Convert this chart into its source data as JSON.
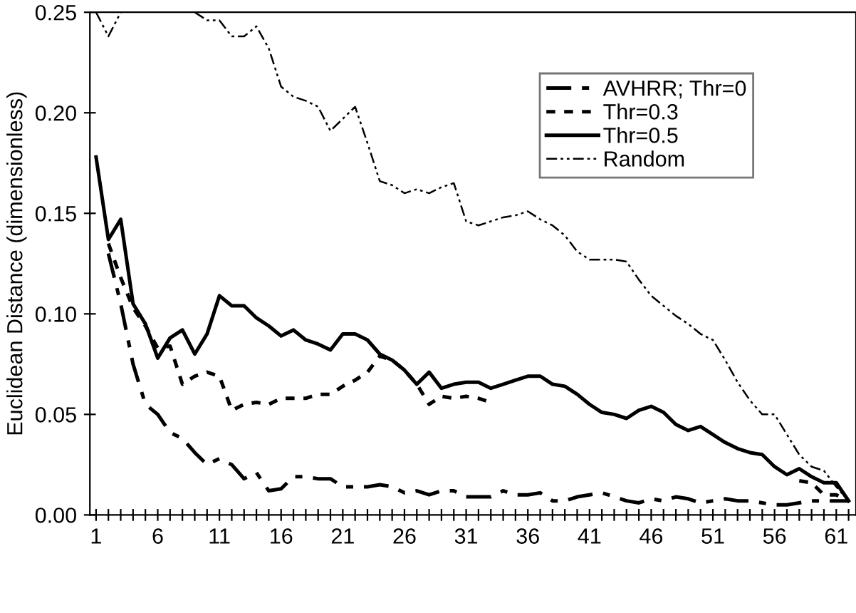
{
  "chart_data": {
    "type": "line",
    "ylabel": "Euclidean Distance (dimensionless)",
    "x": [
      1,
      2,
      3,
      4,
      5,
      6,
      7,
      8,
      9,
      10,
      11,
      12,
      13,
      14,
      15,
      16,
      17,
      18,
      19,
      20,
      21,
      22,
      23,
      24,
      25,
      26,
      27,
      28,
      29,
      30,
      31,
      32,
      33,
      34,
      35,
      36,
      37,
      38,
      39,
      40,
      41,
      42,
      43,
      44,
      45,
      46,
      47,
      48,
      49,
      50,
      51,
      52,
      53,
      54,
      55,
      56,
      57,
      58,
      59,
      60,
      61,
      62
    ],
    "series": [
      {
        "name": "AVHRR; Thr=0",
        "color": "#000000",
        "line_style": "dashed",
        "values": [
          null,
          0.13,
          0.105,
          0.075,
          0.055,
          0.05,
          0.041,
          0.038,
          0.031,
          0.025,
          0.028,
          0.025,
          0.018,
          0.021,
          0.012,
          0.013,
          0.019,
          0.019,
          0.018,
          0.018,
          0.014,
          0.014,
          0.014,
          0.015,
          0.014,
          0.011,
          0.012,
          0.01,
          0.012,
          0.012,
          0.009,
          0.009,
          0.009,
          0.012,
          0.01,
          0.01,
          0.011,
          0.007,
          0.007,
          0.009,
          0.01,
          0.011,
          0.009,
          0.007,
          0.006,
          0.008,
          0.007,
          0.009,
          0.008,
          0.006,
          0.007,
          0.008,
          0.007,
          0.007,
          0.006,
          0.005,
          0.005,
          0.006,
          0.007,
          0.007,
          0.007,
          0.007
        ]
      },
      {
        "name": "Thr=0.3",
        "color": "#000000",
        "line_style": "dotted",
        "values": [
          null,
          0.135,
          0.118,
          0.103,
          0.094,
          0.083,
          0.084,
          0.065,
          0.069,
          0.071,
          0.069,
          0.052,
          0.055,
          0.056,
          0.055,
          0.058,
          0.058,
          0.058,
          0.06,
          0.06,
          0.064,
          0.067,
          0.071,
          0.079,
          0.077,
          0.072,
          0.065,
          0.055,
          0.059,
          0.058,
          0.059,
          0.058,
          0.056,
          null,
          null,
          null,
          null,
          null,
          null,
          null,
          null,
          null,
          null,
          null,
          null,
          null,
          null,
          null,
          null,
          null,
          null,
          null,
          null,
          null,
          null,
          null,
          null,
          0.017,
          0.016,
          0.01,
          0.01,
          0.007
        ]
      },
      {
        "name": "Thr=0.5",
        "color": "#000000",
        "line_style": "solid",
        "values": [
          0.178,
          0.137,
          0.147,
          0.105,
          0.095,
          0.078,
          0.088,
          0.092,
          0.08,
          0.09,
          0.109,
          0.104,
          0.104,
          0.098,
          0.094,
          0.089,
          0.092,
          0.087,
          0.085,
          0.082,
          0.09,
          0.09,
          0.087,
          0.08,
          0.077,
          0.072,
          0.065,
          0.071,
          0.063,
          0.065,
          0.066,
          0.066,
          0.063,
          0.065,
          0.067,
          0.069,
          0.069,
          0.065,
          0.064,
          0.06,
          0.055,
          0.051,
          0.05,
          0.048,
          0.052,
          0.054,
          0.051,
          0.045,
          0.042,
          0.044,
          0.04,
          0.036,
          0.033,
          0.031,
          0.03,
          0.024,
          0.02,
          0.023,
          0.019,
          0.016,
          0.016,
          0.007
        ]
      },
      {
        "name": "Random",
        "color": "#000000",
        "line_style": "dashdot",
        "values": [
          0.25,
          0.238,
          0.25,
          null,
          null,
          null,
          null,
          null,
          0.25,
          0.246,
          0.246,
          0.238,
          0.238,
          0.243,
          0.232,
          0.213,
          0.208,
          0.206,
          0.203,
          0.191,
          0.197,
          0.203,
          0.185,
          0.166,
          0.164,
          0.16,
          0.162,
          0.16,
          0.163,
          0.165,
          0.146,
          0.144,
          0.146,
          0.148,
          0.149,
          0.151,
          0.147,
          0.144,
          0.139,
          0.131,
          0.127,
          0.127,
          0.127,
          0.126,
          0.117,
          0.109,
          0.104,
          0.099,
          0.095,
          0.09,
          0.087,
          0.077,
          0.066,
          0.057,
          0.05,
          0.05,
          0.04,
          0.03,
          0.024,
          0.022,
          0.014,
          0.007
        ]
      }
    ],
    "xlim": [
      0.5,
      62.6
    ],
    "xticks": [
      1,
      {
        "value": 2,
        "label": null
      },
      {
        "value": 3,
        "label": null
      },
      {
        "value": 4,
        "label": null
      },
      {
        "value": 5,
        "label": null
      },
      6,
      {
        "value": 7,
        "label": null
      },
      {
        "value": 8,
        "label": null
      },
      {
        "value": 9,
        "label": null
      },
      {
        "value": 10,
        "label": null
      },
      11,
      {
        "value": 12,
        "label": null
      },
      {
        "value": 13,
        "label": null
      },
      {
        "value": 14,
        "label": null
      },
      {
        "value": 15,
        "label": null
      },
      16,
      {
        "value": 17,
        "label": null
      },
      {
        "value": 18,
        "label": null
      },
      {
        "value": 19,
        "label": null
      },
      {
        "value": 20,
        "label": null
      },
      21,
      {
        "value": 22,
        "label": null
      },
      {
        "value": 23,
        "label": null
      },
      {
        "value": 24,
        "label": null
      },
      {
        "value": 25,
        "label": null
      },
      26,
      {
        "value": 27,
        "label": null
      },
      {
        "value": 28,
        "label": null
      },
      {
        "value": 29,
        "label": null
      },
      {
        "value": 30,
        "label": null
      },
      31,
      {
        "value": 32,
        "label": null
      },
      {
        "value": 33,
        "label": null
      },
      {
        "value": 34,
        "label": null
      },
      {
        "value": 35,
        "label": null
      },
      36,
      {
        "value": 37,
        "label": null
      },
      {
        "value": 38,
        "label": null
      },
      {
        "value": 39,
        "label": null
      },
      {
        "value": 40,
        "label": null
      },
      41,
      {
        "value": 42,
        "label": null
      },
      {
        "value": 43,
        "label": null
      },
      {
        "value": 44,
        "label": null
      },
      {
        "value": 45,
        "label": null
      },
      46,
      {
        "value": 47,
        "label": null
      },
      {
        "value": 48,
        "label": null
      },
      {
        "value": 49,
        "label": null
      },
      {
        "value": 50,
        "label": null
      },
      51,
      {
        "value": 52,
        "label": null
      },
      {
        "value": 53,
        "label": null
      },
      {
        "value": 54,
        "label": null
      },
      {
        "value": 55,
        "label": null
      },
      56,
      {
        "value": 57,
        "label": null
      },
      {
        "value": 58,
        "label": null
      },
      {
        "value": 59,
        "label": null
      },
      {
        "value": 60,
        "label": null
      },
      61,
      {
        "value": 62,
        "label": null
      }
    ],
    "ylim": [
      0,
      0.25
    ],
    "yticks": [
      {
        "value": 0,
        "label": "0.00"
      },
      {
        "value": 0.05,
        "label": "0.05"
      },
      {
        "value": 0.1,
        "label": "0.10"
      },
      {
        "value": 0.15,
        "label": "0.15"
      },
      {
        "value": 0.2,
        "label": "0.20"
      },
      {
        "value": 0.25,
        "label": "0.25"
      }
    ],
    "grid": false,
    "legend": "top right",
    "marker": "none"
  }
}
